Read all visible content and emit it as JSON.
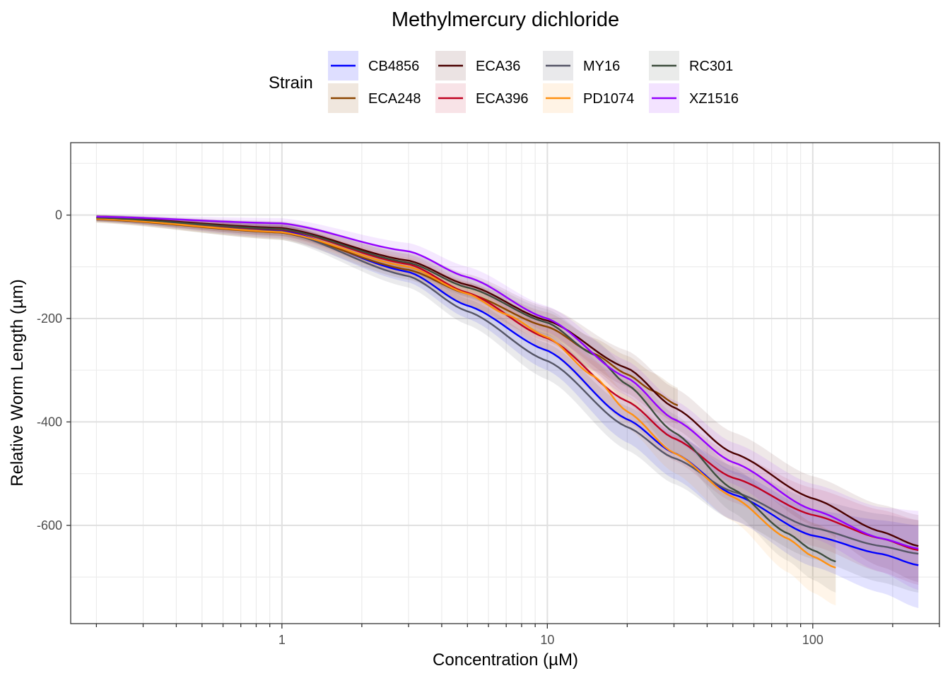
{
  "chart_data": {
    "type": "line",
    "title": "Methylmercury dichloride",
    "xlabel": "Concentration (µM)",
    "ylabel": "Relative Worm Length (µm)",
    "x_scale": "log10",
    "xlim": [
      0.16,
      300
    ],
    "ylim": [
      -790,
      140
    ],
    "x_ticks": [
      1,
      10,
      100
    ],
    "x_tick_labels": [
      "1",
      "10",
      "100"
    ],
    "y_ticks": [
      0,
      -200,
      -400,
      -600
    ],
    "y_tick_labels": [
      "0",
      "-200",
      "-400",
      "-600"
    ],
    "grid": true,
    "legend_title": "Strain",
    "legend_position": "top",
    "series": [
      {
        "name": "CB4856",
        "color": "#0000ff",
        "band_alpha": 0.11,
        "x_max": 250,
        "x": [
          0.2,
          1,
          3,
          5,
          10,
          20,
          30,
          50,
          100,
          180,
          250
        ],
        "y": [
          -5,
          -30,
          -110,
          -175,
          -262,
          -395,
          -460,
          -540,
          -620,
          -655,
          -677
        ],
        "lo": [
          -12,
          -45,
          -130,
          -200,
          -300,
          -440,
          -510,
          -590,
          -680,
          -730,
          -760
        ],
        "hi": [
          0,
          -18,
          -92,
          -150,
          -230,
          -360,
          -420,
          -495,
          -570,
          -590,
          -600
        ]
      },
      {
        "name": "ECA248",
        "color": "#8b4500",
        "band_alpha": 0.11,
        "x_max": 31,
        "x": [
          0.2,
          1,
          3,
          5,
          10,
          15,
          20,
          25,
          31
        ],
        "y": [
          -8,
          -34,
          -106,
          -152,
          -216,
          -268,
          -308,
          -340,
          -368
        ],
        "lo": [
          -15,
          -48,
          -125,
          -175,
          -245,
          -300,
          -345,
          -378,
          -404
        ],
        "hi": [
          0,
          -20,
          -88,
          -130,
          -188,
          -238,
          -272,
          -305,
          -334
        ]
      },
      {
        "name": "ECA36",
        "color": "#4b0000",
        "band_alpha": 0.09,
        "x_max": 250,
        "x": [
          0.2,
          1,
          3,
          5,
          10,
          20,
          30,
          50,
          100,
          180,
          250
        ],
        "y": [
          -4,
          -25,
          -88,
          -135,
          -204,
          -296,
          -372,
          -460,
          -548,
          -612,
          -640
        ],
        "lo": [
          -12,
          -40,
          -108,
          -158,
          -232,
          -332,
          -412,
          -500,
          -600,
          -680,
          -710
        ],
        "hi": [
          0,
          -12,
          -70,
          -114,
          -178,
          -262,
          -334,
          -420,
          -505,
          -560,
          -580
        ]
      },
      {
        "name": "ECA396",
        "color": "#c00020",
        "band_alpha": 0.09,
        "x_max": 250,
        "x": [
          0.2,
          1,
          3,
          5,
          10,
          20,
          30,
          50,
          100,
          180,
          250
        ],
        "y": [
          -5,
          -28,
          -95,
          -150,
          -238,
          -360,
          -432,
          -508,
          -580,
          -625,
          -648
        ],
        "lo": [
          -12,
          -42,
          -115,
          -173,
          -265,
          -400,
          -475,
          -555,
          -640,
          -690,
          -715
        ],
        "hi": [
          0,
          -15,
          -76,
          -128,
          -212,
          -322,
          -392,
          -462,
          -528,
          -570,
          -590
        ]
      },
      {
        "name": "MY16",
        "color": "#555566",
        "band_alpha": 0.12,
        "x_max": 250,
        "x": [
          0.2,
          1,
          3,
          5,
          10,
          20,
          30,
          50,
          100,
          180,
          250
        ],
        "y": [
          -6,
          -32,
          -118,
          -186,
          -282,
          -410,
          -470,
          -535,
          -605,
          -640,
          -655
        ],
        "lo": [
          -14,
          -48,
          -140,
          -212,
          -318,
          -455,
          -520,
          -590,
          -665,
          -710,
          -730
        ],
        "hi": [
          0,
          -18,
          -98,
          -162,
          -248,
          -370,
          -425,
          -485,
          -550,
          -578,
          -590
        ]
      },
      {
        "name": "PD1074",
        "color": "#ff9010",
        "band_alpha": 0.09,
        "x_max": 122,
        "x": [
          0.2,
          1,
          3,
          5,
          7,
          10,
          15,
          20,
          30,
          50,
          80,
          100,
          122
        ],
        "y": [
          -7,
          -33,
          -100,
          -152,
          -192,
          -236,
          -312,
          -380,
          -460,
          -545,
          -625,
          -660,
          -682
        ],
        "lo": [
          -14,
          -46,
          -118,
          -172,
          -214,
          -262,
          -342,
          -412,
          -498,
          -592,
          -690,
          -730,
          -755
        ],
        "hi": [
          0,
          -20,
          -82,
          -132,
          -170,
          -210,
          -282,
          -348,
          -422,
          -500,
          -565,
          -595,
          -612
        ]
      },
      {
        "name": "RC301",
        "color": "#3d4d3d",
        "band_alpha": 0.09,
        "x_max": 122,
        "x": [
          0.2,
          1,
          3,
          5,
          10,
          15,
          20,
          30,
          50,
          80,
          100,
          122
        ],
        "y": [
          -5,
          -27,
          -92,
          -140,
          -208,
          -270,
          -328,
          -420,
          -530,
          -615,
          -648,
          -670
        ],
        "lo": [
          -12,
          -40,
          -110,
          -160,
          -235,
          -302,
          -362,
          -458,
          -575,
          -668,
          -705,
          -730
        ],
        "hi": [
          0,
          -14,
          -74,
          -120,
          -182,
          -240,
          -295,
          -385,
          -488,
          -565,
          -595,
          -615
        ]
      },
      {
        "name": "XZ1516",
        "color": "#9400ff",
        "band_alpha": 0.09,
        "x_max": 250,
        "x": [
          0.2,
          1,
          3,
          5,
          10,
          20,
          30,
          50,
          100,
          180,
          250
        ],
        "y": [
          -3,
          -16,
          -70,
          -120,
          -200,
          -315,
          -395,
          -478,
          -570,
          -625,
          -645
        ],
        "lo": [
          -8,
          -28,
          -88,
          -140,
          -226,
          -350,
          -435,
          -520,
          -625,
          -690,
          -725
        ],
        "hi": [
          0,
          -6,
          -54,
          -100,
          -176,
          -282,
          -358,
          -440,
          -520,
          -565,
          -572
        ]
      }
    ]
  }
}
